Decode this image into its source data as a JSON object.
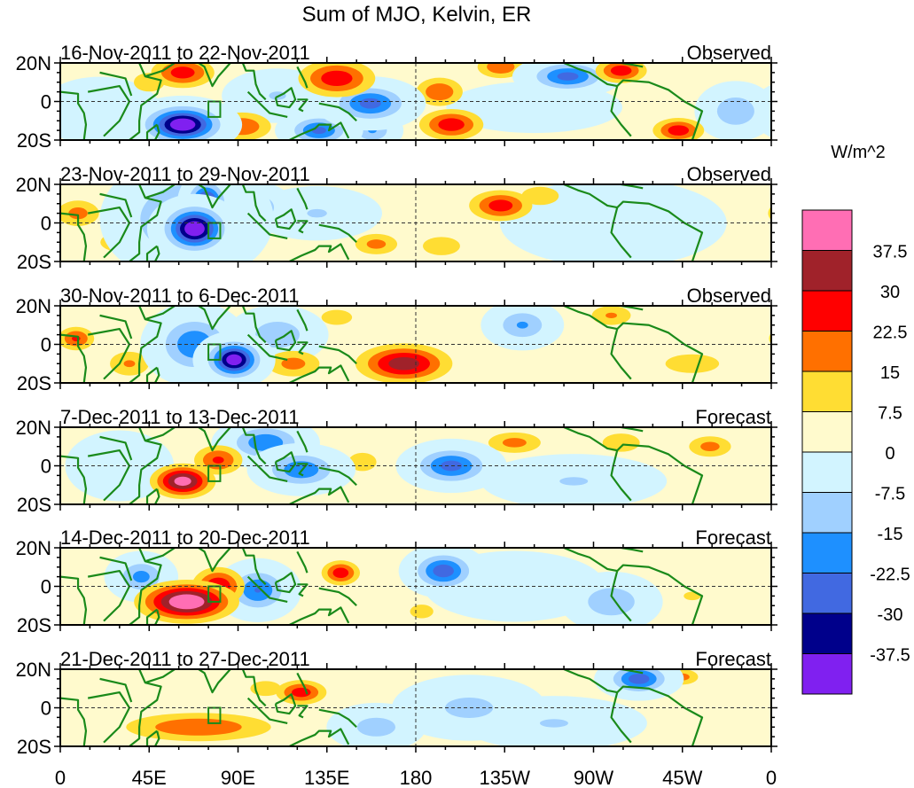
{
  "chart_data": {
    "type": "heatmap",
    "title": "Sum of MJO, Kelvin, ER",
    "units_label": "W/m^2",
    "lat_ticks": [
      "20N",
      "0",
      "20S"
    ],
    "lat_values": [
      20,
      0,
      -20
    ],
    "lon_ticks": [
      "0",
      "45E",
      "90E",
      "135E",
      "180",
      "135W",
      "90W",
      "45W",
      "0"
    ],
    "lon_values": [
      0,
      45,
      90,
      135,
      180,
      225,
      270,
      315,
      360
    ],
    "xlim": [
      0,
      360
    ],
    "ylim": [
      -20,
      20
    ],
    "colorbar": {
      "labels": [
        "37.5",
        "30",
        "22.5",
        "15",
        "7.5",
        "0",
        "-7.5",
        "-15",
        "-22.5",
        "-30",
        "-37.5"
      ],
      "levels": [
        37.5,
        30,
        22.5,
        15,
        7.5,
        0,
        -7.5,
        -15,
        -22.5,
        -30,
        -37.5
      ],
      "colors": [
        "#ff6eb4",
        "#a0222a",
        "#ff0000",
        "#ff7000",
        "#ffdd33",
        "#fffacd",
        "#d2f4ff",
        "#a0d0ff",
        "#1e90ff",
        "#4169e1",
        "#00008b",
        "#8020f0"
      ]
    },
    "panels": [
      {
        "period": "16-Nov-2011 to 22-Nov-2011",
        "kind": "Observed",
        "anomalies": [
          [
            62,
            -12,
            -46,
            10,
            5
          ],
          [
            62,
            15,
            27,
            10,
            5
          ],
          [
            45,
            10,
            12,
            8,
            5
          ],
          [
            92,
            -13,
            22,
            10,
            5
          ],
          [
            140,
            12,
            28,
            12,
            6
          ],
          [
            157,
            -1,
            -26,
            10,
            5
          ],
          [
            131,
            -15,
            -25,
            8,
            4
          ],
          [
            192,
            5,
            22,
            8,
            5
          ],
          [
            198,
            -12,
            28,
            10,
            5
          ],
          [
            257,
            13,
            -26,
            10,
            4
          ],
          [
            284,
            16,
            28,
            8,
            4
          ],
          [
            313,
            -15,
            28,
            8,
            4
          ],
          [
            223,
            18,
            22,
            8,
            4
          ],
          [
            158,
            -15,
            -16,
            6,
            4
          ],
          [
            342,
            -5,
            -15,
            8,
            6
          ],
          [
            20,
            -5,
            -6,
            14,
            8
          ],
          [
            110,
            3,
            -8,
            12,
            6
          ],
          [
            240,
            -3,
            -6,
            20,
            6
          ]
        ]
      },
      {
        "period": "23-Nov-2011 to 29-Nov-2011",
        "kind": "Observed",
        "anomalies": [
          [
            68,
            -3,
            -46,
            8,
            6
          ],
          [
            74,
            10,
            -40,
            5,
            6
          ],
          [
            64,
            2,
            -22,
            16,
            12
          ],
          [
            9,
            5,
            18,
            8,
            5
          ],
          [
            223,
            9,
            27,
            10,
            5
          ],
          [
            243,
            14,
            15,
            8,
            4
          ],
          [
            160,
            -11,
            18,
            8,
            4
          ],
          [
            193,
            -12,
            15,
            8,
            4
          ],
          [
            97,
            8,
            -20,
            8,
            5
          ],
          [
            280,
            0,
            -7,
            25,
            10
          ],
          [
            130,
            5,
            -8,
            14,
            6
          ],
          [
            30,
            -10,
            12,
            10,
            5
          ]
        ]
      },
      {
        "period": "30-Nov-2011 to 6-Dec-2011",
        "kind": "Observed",
        "anomalies": [
          [
            88,
            -8,
            -44,
            7,
            5
          ],
          [
            68,
            0,
            -22,
            10,
            8
          ],
          [
            174,
            -10,
            35,
            14,
            6
          ],
          [
            118,
            -10,
            18,
            10,
            5
          ],
          [
            8,
            3,
            24,
            6,
            4
          ],
          [
            234,
            10,
            -16,
            8,
            5
          ],
          [
            279,
            15,
            16,
            8,
            4
          ],
          [
            35,
            -10,
            16,
            8,
            5
          ],
          [
            140,
            14,
            12,
            8,
            4
          ],
          [
            110,
            5,
            -14,
            10,
            6
          ],
          [
            320,
            -10,
            12,
            14,
            5
          ]
        ]
      },
      {
        "period": "7-Dec-2011 to 13-Dec-2011",
        "kind": "Forecast",
        "anomalies": [
          [
            62,
            -8,
            42,
            9,
            5
          ],
          [
            80,
            3,
            24,
            8,
            5
          ],
          [
            104,
            12,
            -22,
            10,
            5
          ],
          [
            122,
            -2,
            -22,
            10,
            5
          ],
          [
            230,
            12,
            18,
            10,
            4
          ],
          [
            198,
            0,
            -26,
            10,
            5
          ],
          [
            329,
            10,
            18,
            8,
            4
          ],
          [
            284,
            12,
            15,
            8,
            4
          ],
          [
            153,
            2,
            15,
            6,
            4
          ],
          [
            260,
            -8,
            -8,
            20,
            6
          ],
          [
            30,
            0,
            -7,
            12,
            8
          ]
        ]
      },
      {
        "period": "14-Dec-2011 to 20-Dec-2011",
        "kind": "Forecast",
        "anomalies": [
          [
            64,
            -8,
            46,
            14,
            6
          ],
          [
            80,
            0,
            30,
            8,
            6
          ],
          [
            100,
            -2,
            -23,
            8,
            6
          ],
          [
            41,
            5,
            -18,
            7,
            5
          ],
          [
            142,
            7,
            28,
            6,
            4
          ],
          [
            194,
            8,
            -28,
            8,
            5
          ],
          [
            183,
            -13,
            15,
            5,
            3
          ],
          [
            279,
            -8,
            -15,
            10,
            6
          ],
          [
            230,
            0,
            -7,
            20,
            8
          ],
          [
            320,
            -5,
            8,
            12,
            6
          ]
        ]
      },
      {
        "period": "21-Dec-2011 to 27-Dec-2011",
        "kind": "Forecast",
        "anomalies": [
          [
            70,
            -10,
            22,
            25,
            5
          ],
          [
            122,
            8,
            27,
            8,
            4
          ],
          [
            293,
            15,
            -28,
            8,
            4
          ],
          [
            315,
            16,
            18,
            6,
            3
          ],
          [
            207,
            0,
            -10,
            16,
            7
          ],
          [
            104,
            10,
            12,
            8,
            4
          ],
          [
            250,
            -8,
            -8,
            20,
            6
          ],
          [
            160,
            -10,
            -12,
            10,
            5
          ]
        ]
      }
    ]
  }
}
